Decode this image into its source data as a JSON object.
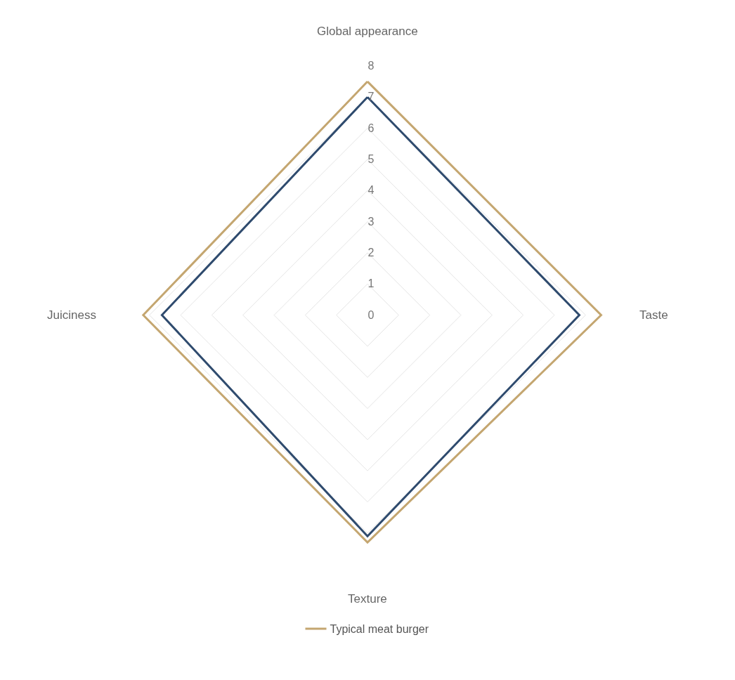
{
  "chart_data": {
    "type": "radar",
    "categories": [
      "Global appearance",
      "Taste",
      "Texture",
      "Juiciness"
    ],
    "series": [
      {
        "color": "#2f4b6e",
        "values": [
          7.0,
          6.8,
          7.1,
          6.6
        ]
      },
      {
        "name": "Typical meat burger",
        "color": "#c4a670",
        "values": [
          7.5,
          7.5,
          7.3,
          7.2
        ]
      }
    ],
    "ylim": [
      0,
      8
    ],
    "yticks": [
      0,
      1,
      2,
      3,
      4,
      5,
      6,
      7,
      8
    ],
    "grid": true,
    "legend": "bottom",
    "marker": "none",
    "line_style": "solid"
  }
}
